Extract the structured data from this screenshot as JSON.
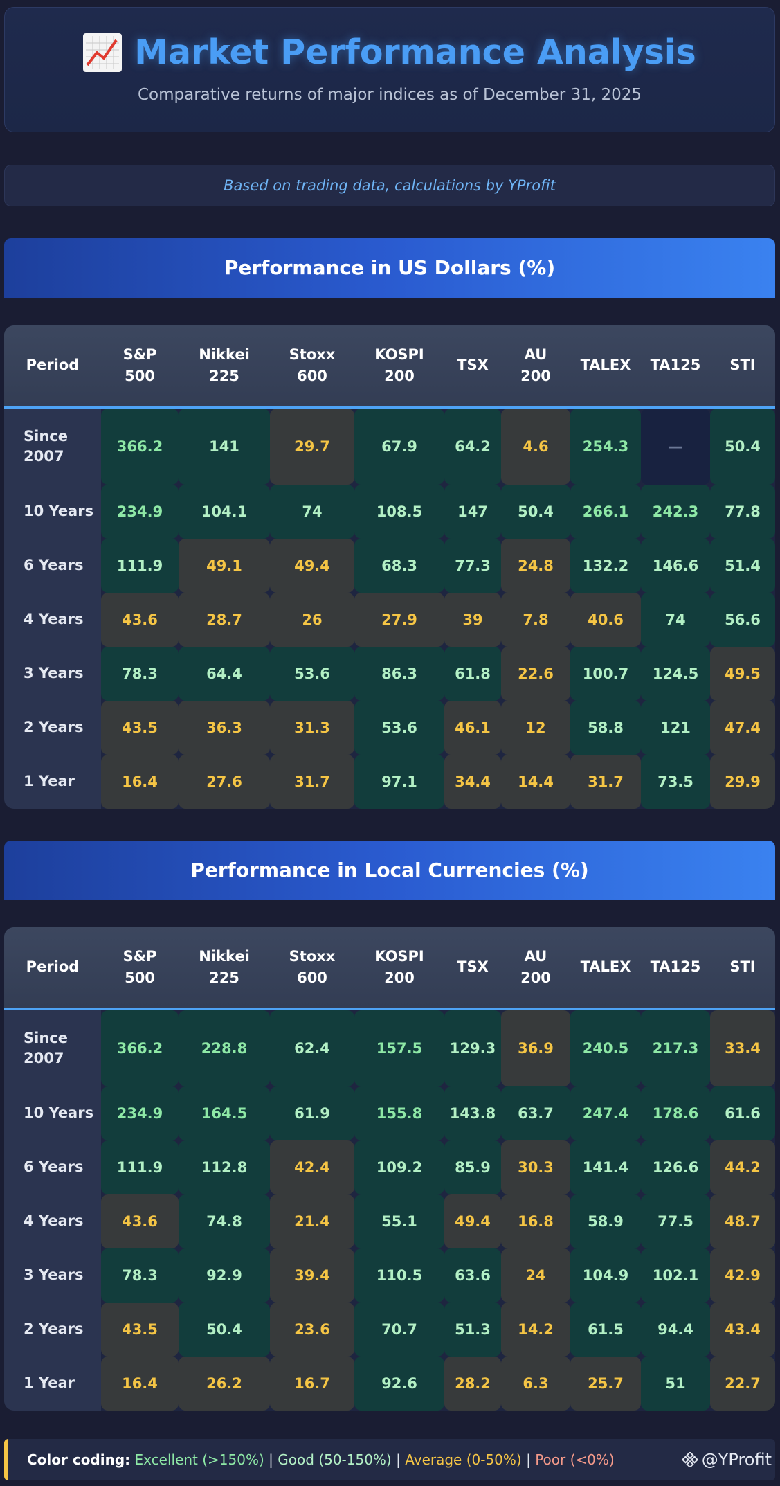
{
  "header": {
    "title": "Market Performance Analysis",
    "subtitle": "Comparative returns of major indices as of December 31, 2025",
    "icon": "chart-increasing-icon"
  },
  "source_note": "Based on trading data, calculations by YProfit",
  "chart_data": [
    {
      "type": "table",
      "title": "Performance in US Dollars (%)",
      "columns": [
        "Period",
        "S&P\n500",
        "Nikkei\n225",
        "Stoxx\n600",
        "KOSPI\n200",
        "TSX",
        "AU\n200",
        "TALEX",
        "TA125",
        "STI"
      ],
      "rows": [
        {
          "period": "Since\n2007",
          "values": [
            "366.2",
            "141",
            "29.7",
            "67.9",
            "64.2",
            "4.6",
            "254.3",
            "—",
            "50.4"
          ]
        },
        {
          "period": "10 Years",
          "values": [
            "234.9",
            "104.1",
            "74",
            "108.5",
            "147",
            "50.4",
            "266.1",
            "242.3",
            "77.8"
          ]
        },
        {
          "period": "6 Years",
          "values": [
            "111.9",
            "49.1",
            "49.4",
            "68.3",
            "77.3",
            "24.8",
            "132.2",
            "146.6",
            "51.4"
          ]
        },
        {
          "period": "4 Years",
          "values": [
            "43.6",
            "28.7",
            "26",
            "27.9",
            "39",
            "7.8",
            "40.6",
            "74",
            "56.6"
          ]
        },
        {
          "period": "3 Years",
          "values": [
            "78.3",
            "64.4",
            "53.6",
            "86.3",
            "61.8",
            "22.6",
            "100.7",
            "124.5",
            "49.5"
          ]
        },
        {
          "period": "2 Years",
          "values": [
            "43.5",
            "36.3",
            "31.3",
            "53.6",
            "46.1",
            "12",
            "58.8",
            "121",
            "47.4"
          ]
        },
        {
          "period": "1 Year",
          "values": [
            "16.4",
            "27.6",
            "31.7",
            "97.1",
            "34.4",
            "14.4",
            "31.7",
            "73.5",
            "29.9"
          ]
        }
      ]
    },
    {
      "type": "table",
      "title": "Performance in Local Currencies (%)",
      "columns": [
        "Period",
        "S&P\n500",
        "Nikkei\n225",
        "Stoxx\n600",
        "KOSPI\n200",
        "TSX",
        "AU\n200",
        "TALEX",
        "TA125",
        "STI"
      ],
      "rows": [
        {
          "period": "Since\n2007",
          "values": [
            "366.2",
            "228.8",
            "62.4",
            "157.5",
            "129.3",
            "36.9",
            "240.5",
            "217.3",
            "33.4"
          ]
        },
        {
          "period": "10 Years",
          "values": [
            "234.9",
            "164.5",
            "61.9",
            "155.8",
            "143.8",
            "63.7",
            "247.4",
            "178.6",
            "61.6"
          ]
        },
        {
          "period": "6 Years",
          "values": [
            "111.9",
            "112.8",
            "42.4",
            "109.2",
            "85.9",
            "30.3",
            "141.4",
            "126.6",
            "44.2"
          ]
        },
        {
          "period": "4 Years",
          "values": [
            "43.6",
            "74.8",
            "21.4",
            "55.1",
            "49.4",
            "16.8",
            "58.9",
            "77.5",
            "48.7"
          ]
        },
        {
          "period": "3 Years",
          "values": [
            "78.3",
            "92.9",
            "39.4",
            "110.5",
            "63.6",
            "24",
            "104.9",
            "102.1",
            "42.9"
          ]
        },
        {
          "period": "2 Years",
          "values": [
            "43.5",
            "50.4",
            "23.6",
            "70.7",
            "51.3",
            "14.2",
            "61.5",
            "94.4",
            "43.4"
          ]
        },
        {
          "period": "1 Year",
          "values": [
            "16.4",
            "26.2",
            "16.7",
            "92.6",
            "28.2",
            "6.3",
            "25.7",
            "51",
            "22.7"
          ]
        }
      ]
    }
  ],
  "colors": {
    "excellent": "#8ee8a6",
    "good": "#b3f0c5",
    "average": "#f5c545",
    "poor": "#f59a8a",
    "accent": "#4a9df5"
  },
  "legend": {
    "label": "Color coding:",
    "excellent": "Excellent (>150%)",
    "good": "Good (50-150%)",
    "average": "Average (0-50%)",
    "poor": "Poor (<0%)",
    "separator": "|"
  },
  "watermark": "@YProfit"
}
